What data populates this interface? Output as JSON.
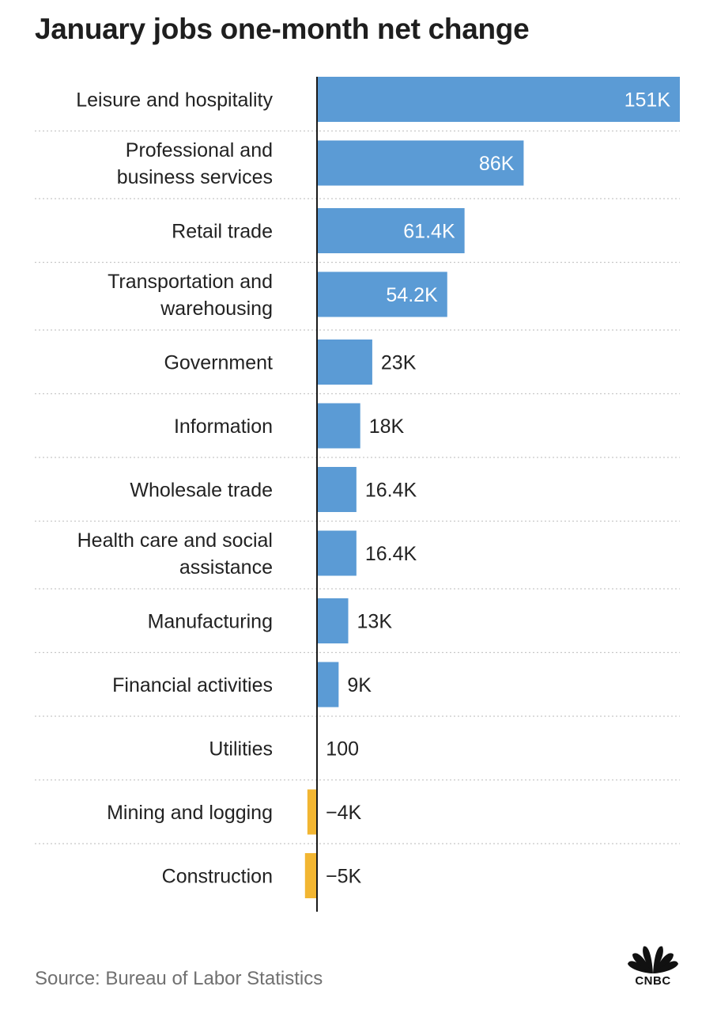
{
  "chart_data": {
    "type": "bar",
    "orientation": "horizontal",
    "title": "January jobs one-month net change",
    "categories": [
      "Leisure and hospitality",
      "Professional and business services",
      "Retail trade",
      "Transportation and warehousing",
      "Government",
      "Information",
      "Wholesale trade",
      "Health care and social assistance",
      "Manufacturing",
      "Financial activities",
      "Utilities",
      "Mining and logging",
      "Construction"
    ],
    "category_lines": [
      [
        "Leisure and hospitality"
      ],
      [
        "Professional and",
        "business services"
      ],
      [
        "Retail trade"
      ],
      [
        "Transportation and",
        "warehousing"
      ],
      [
        "Government"
      ],
      [
        "Information"
      ],
      [
        "Wholesale trade"
      ],
      [
        "Health care and social",
        "assistance"
      ],
      [
        "Manufacturing"
      ],
      [
        "Financial activities"
      ],
      [
        "Utilities"
      ],
      [
        "Mining and logging"
      ],
      [
        "Construction"
      ]
    ],
    "values": [
      151000,
      86000,
      61400,
      54200,
      23000,
      18000,
      16400,
      16400,
      13000,
      9000,
      100,
      -4000,
      -5000
    ],
    "value_labels": [
      "151K",
      "86K",
      "61.4K",
      "54.2K",
      "23K",
      "18K",
      "16.4K",
      "16.4K",
      "13K",
      "9K",
      "100",
      "−4K",
      "−5K"
    ],
    "colors": {
      "positive": "#5b9bd5",
      "negative": "#f2b632"
    },
    "xlim": [
      -5000,
      151000
    ],
    "grid": false,
    "legend": "none",
    "source": "Source: Bureau of Labor Statistics"
  },
  "brand": {
    "logo_text": "CNBC"
  }
}
